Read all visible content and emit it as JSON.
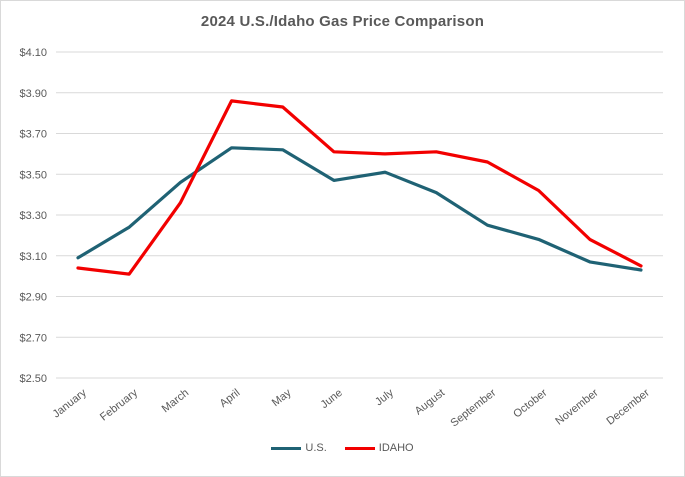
{
  "chart_data": {
    "type": "line",
    "title": "2024 U.S./Idaho Gas Price Comparison",
    "categories": [
      "January",
      "February",
      "March",
      "April",
      "May",
      "June",
      "July",
      "August",
      "September",
      "October",
      "November",
      "December"
    ],
    "series": [
      {
        "name": "U.S.",
        "color": "#1F6274",
        "values": [
          3.09,
          3.24,
          3.46,
          3.63,
          3.62,
          3.47,
          3.51,
          3.41,
          3.25,
          3.18,
          3.07,
          3.03
        ]
      },
      {
        "name": "IDAHO",
        "color": "#F20000",
        "values": [
          3.04,
          3.01,
          3.36,
          3.86,
          3.83,
          3.61,
          3.6,
          3.61,
          3.56,
          3.42,
          3.18,
          3.05
        ]
      }
    ],
    "xlabel": "",
    "ylabel": "",
    "ylim": [
      2.5,
      4.1
    ],
    "y_tick_step": 0.2,
    "y_tick_labels": [
      "$2.50",
      "$2.70",
      "$2.90",
      "$3.10",
      "$3.30",
      "$3.50",
      "$3.70",
      "$3.90",
      "$4.10"
    ],
    "grid": true,
    "legend_position": "bottom"
  },
  "colors": {
    "text": "#595959",
    "gridline": "#D9D9D9",
    "frame_border": "#D9D9D9",
    "background": "#FFFFFF"
  }
}
